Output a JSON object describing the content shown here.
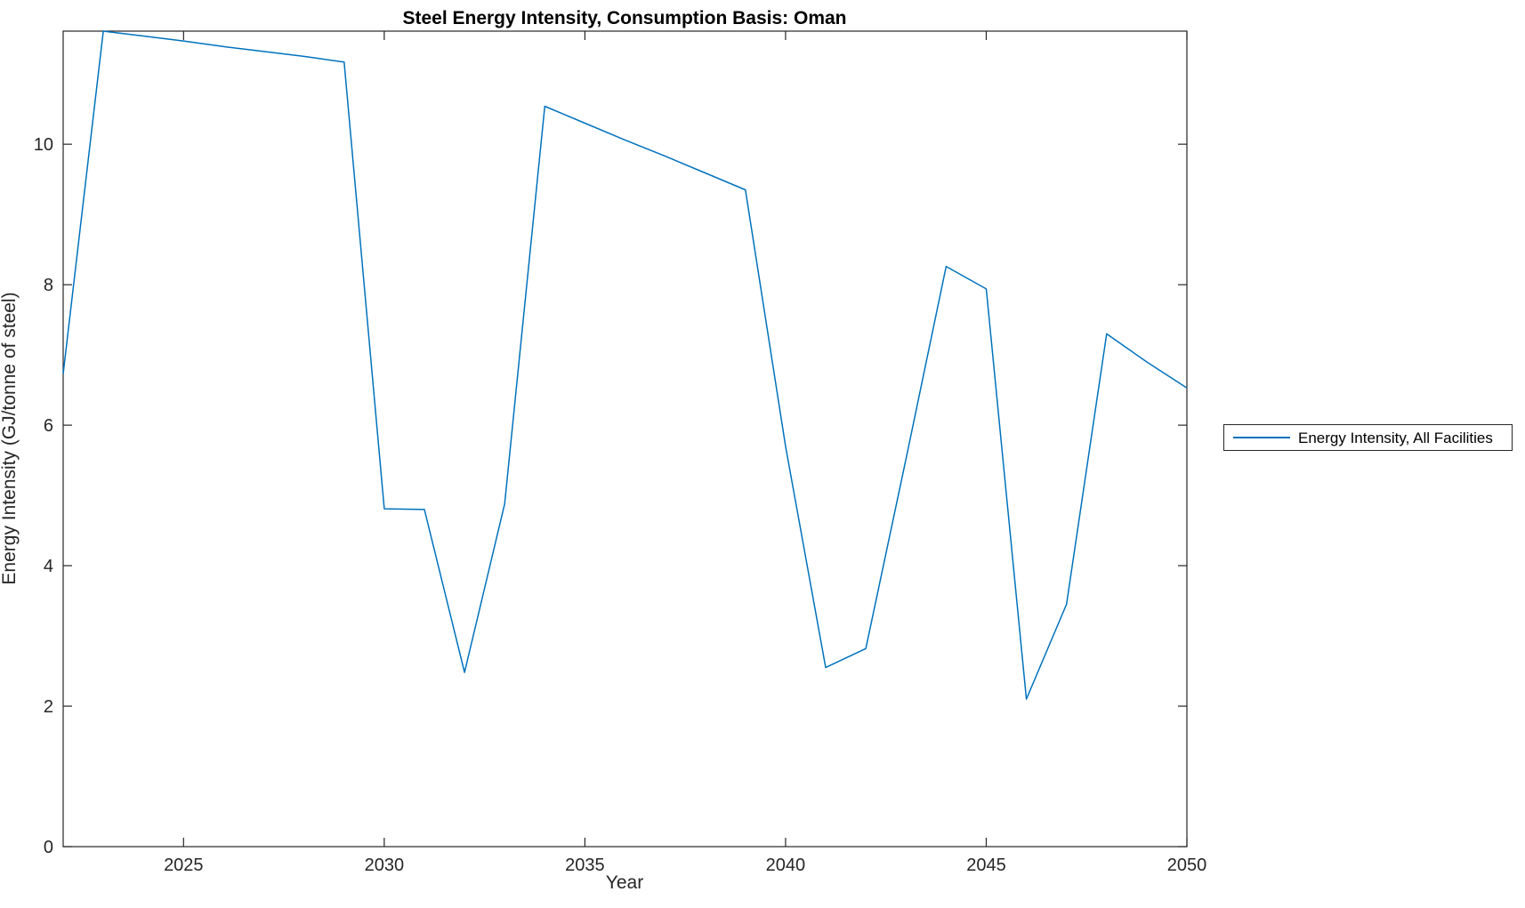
{
  "title": "Steel Energy Intensity, Consumption Basis: Oman",
  "axes": {
    "xlabel": "Year",
    "ylabel": "Energy Intensity (GJ/tonne of steel)"
  },
  "legend": {
    "items": [
      {
        "label": "Energy Intensity, All Facilities",
        "color": "#0072BD"
      }
    ],
    "position": "right-outside"
  },
  "colors": {
    "line": "#0072BD",
    "axis": "#262626",
    "title": "#000000",
    "background": "#ffffff"
  },
  "chart_data": {
    "type": "line",
    "title": "Steel Energy Intensity, Consumption Basis: Oman",
    "xlabel": "Year",
    "ylabel": "Energy Intensity (GJ/tonne of steel)",
    "x": [
      2022,
      2023,
      2024,
      2025,
      2026,
      2027,
      2028,
      2029,
      2030,
      2031,
      2032,
      2033,
      2034,
      2035,
      2036,
      2037,
      2038,
      2039,
      2040,
      2041,
      2042,
      2043,
      2044,
      2045,
      2046,
      2047,
      2048,
      2049,
      2050
    ],
    "series": [
      {
        "name": "Energy Intensity, All Facilities",
        "color": "#0072BD",
        "values": [
          6.73,
          11.61,
          11.54,
          11.47,
          11.39,
          11.32,
          11.25,
          11.17,
          4.81,
          4.8,
          2.48,
          4.88,
          10.54,
          10.3,
          10.06,
          9.83,
          9.59,
          9.35,
          5.7,
          2.55,
          2.82,
          5.52,
          8.26,
          7.94,
          2.1,
          3.45,
          7.3,
          6.9,
          6.53
        ]
      }
    ],
    "xlim": [
      2022,
      2050
    ],
    "ylim": [
      0,
      11.61
    ],
    "x_ticks": [
      2025,
      2030,
      2035,
      2040,
      2045,
      2050
    ],
    "y_ticks": [
      0,
      2,
      4,
      6,
      8,
      10
    ],
    "grid": false,
    "tick_direction": "in",
    "box": true,
    "legend_position": "right-outside"
  }
}
